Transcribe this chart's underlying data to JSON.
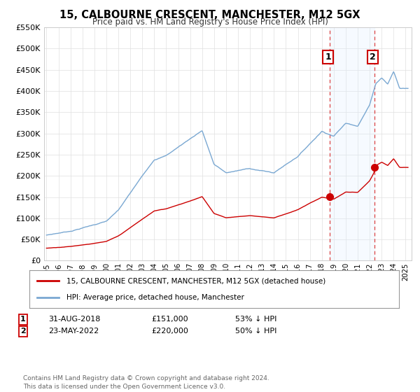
{
  "title": "15, CALBOURNE CRESCENT, MANCHESTER, M12 5GX",
  "subtitle": "Price paid vs. HM Land Registry's House Price Index (HPI)",
  "legend_line1": "15, CALBOURNE CRESCENT, MANCHESTER, M12 5GX (detached house)",
  "legend_line2": "HPI: Average price, detached house, Manchester",
  "ann1_label": "1",
  "ann1_date": "31-AUG-2018",
  "ann1_price": "£151,000",
  "ann1_hpi": "53% ↓ HPI",
  "ann2_label": "2",
  "ann2_date": "23-MAY-2022",
  "ann2_price": "£220,000",
  "ann2_hpi": "50% ↓ HPI",
  "footer": "Contains HM Land Registry data © Crown copyright and database right 2024.\nThis data is licensed under the Open Government Licence v3.0.",
  "red_color": "#cc0000",
  "blue_color": "#7aa8d2",
  "shade_color": "#ddeeff",
  "vline_color": "#dd4444",
  "ylim": [
    0,
    550000
  ],
  "yticks": [
    0,
    50000,
    100000,
    150000,
    200000,
    250000,
    300000,
    350000,
    400000,
    450000,
    500000,
    550000
  ],
  "ytick_labels": [
    "£0",
    "£50K",
    "£100K",
    "£150K",
    "£200K",
    "£250K",
    "£300K",
    "£350K",
    "£400K",
    "£450K",
    "£500K",
    "£550K"
  ],
  "sale1_x": 2018.67,
  "sale1_y": 151000,
  "sale2_x": 2022.39,
  "sale2_y": 220000,
  "xlim_left": 1994.8,
  "xlim_right": 2025.5
}
